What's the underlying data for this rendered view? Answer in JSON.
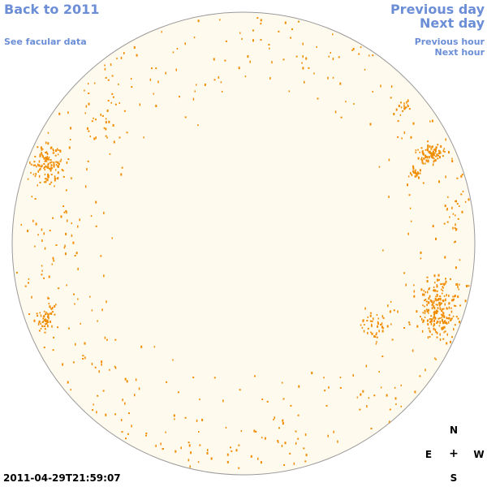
{
  "nav": {
    "back_label": "Back to 2011",
    "facular_label": "See facular data",
    "prev_day_label": "Previous day",
    "next_day_label": "Next day",
    "prev_hour_label": "Previous hour",
    "next_hour_label": "Next hour"
  },
  "timestamp": "2011-04-29T21:59:07",
  "compass": {
    "north": "N",
    "south": "S",
    "east": "E",
    "west": "W",
    "center": "+"
  },
  "colors": {
    "link": "#6b8ed6",
    "disk_fill": "#fffaee",
    "disk_outline": "#9a9a9a",
    "facula": "#f08c00"
  }
}
